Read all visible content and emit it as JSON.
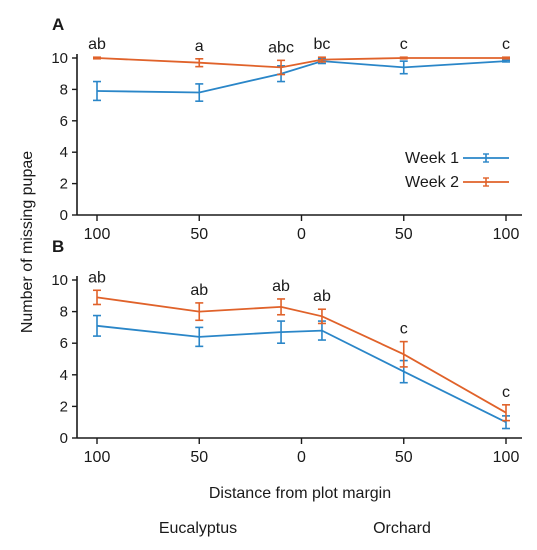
{
  "figure": {
    "ylabel": "Number of missing pupae",
    "xlabel": "Distance from plot margin",
    "region_labels": [
      "Eucalyptus",
      "Orchard"
    ],
    "colors": {
      "week1": "#2a86c8",
      "week2": "#e0622a",
      "axis": "#1a1a1a"
    }
  },
  "chart_data": [
    {
      "type": "line",
      "panel": "A",
      "x": [
        -100,
        -50,
        -10,
        10,
        50,
        100
      ],
      "x_tick_values": [
        -100,
        -50,
        0,
        50,
        100
      ],
      "x_tick_labels": [
        "100",
        "50",
        "0",
        "50",
        "100"
      ],
      "ylim": [
        0,
        10
      ],
      "y_ticks": [
        0,
        2,
        4,
        6,
        8,
        10
      ],
      "series": [
        {
          "name": "Week 1",
          "color": "#2a86c8",
          "values": [
            7.9,
            7.8,
            9.0,
            9.8,
            9.4,
            9.8
          ],
          "errors": [
            0.6,
            0.55,
            0.5,
            0.15,
            0.4,
            0.05
          ]
        },
        {
          "name": "Week 2",
          "color": "#e0622a",
          "values": [
            10.0,
            9.7,
            9.4,
            9.9,
            10.0,
            10.0
          ],
          "errors": [
            0.05,
            0.25,
            0.45,
            0.15,
            0.05,
            0.05
          ]
        }
      ],
      "annotations": [
        "ab",
        "a",
        "abc",
        "bc",
        "c",
        "c"
      ],
      "legend": {
        "position": "right",
        "entries": [
          "Week 1",
          "Week 2"
        ]
      }
    },
    {
      "type": "line",
      "panel": "B",
      "x": [
        -100,
        -50,
        -10,
        10,
        50,
        100
      ],
      "x_tick_values": [
        -100,
        -50,
        0,
        50,
        100
      ],
      "x_tick_labels": [
        "100",
        "50",
        "0",
        "50",
        "100"
      ],
      "ylim": [
        0,
        10
      ],
      "y_ticks": [
        0,
        2,
        4,
        6,
        8,
        10
      ],
      "series": [
        {
          "name": "Week 1",
          "color": "#2a86c8",
          "values": [
            7.1,
            6.4,
            6.7,
            6.8,
            4.2,
            1.0
          ],
          "errors": [
            0.65,
            0.6,
            0.7,
            0.6,
            0.7,
            0.4
          ]
        },
        {
          "name": "Week 2",
          "color": "#e0622a",
          "values": [
            8.9,
            8.0,
            8.3,
            7.7,
            5.3,
            1.6
          ],
          "errors": [
            0.45,
            0.55,
            0.5,
            0.45,
            0.8,
            0.5
          ]
        }
      ],
      "annotations": [
        "ab",
        "ab",
        "ab",
        "ab",
        "c",
        "c"
      ]
    }
  ]
}
